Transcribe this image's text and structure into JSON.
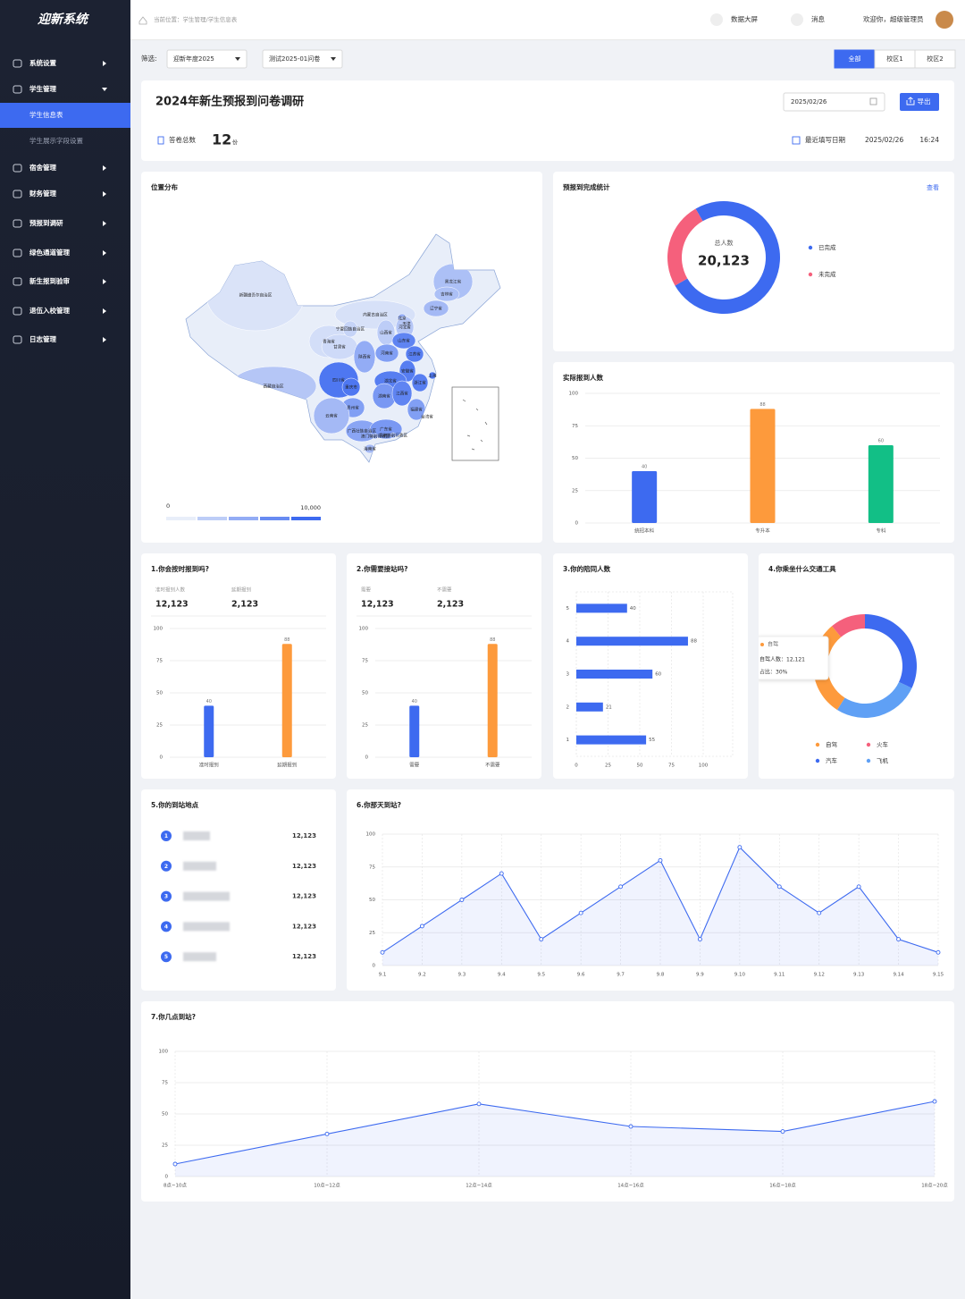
{
  "sidebar": {
    "logo": "迎新系统",
    "menu": [
      {
        "label": "系统设置"
      },
      {
        "label": "学生管理",
        "expanded": true
      },
      {
        "label": "学生信息表",
        "sub": true,
        "active": true
      },
      {
        "label": "学生展示字段设置",
        "sub": true
      },
      {
        "label": "宿舍管理"
      },
      {
        "label": "财务管理"
      },
      {
        "label": "预报到调研"
      },
      {
        "label": "绿色通道管理"
      },
      {
        "label": "新生报到验审"
      },
      {
        "label": "退伍入校管理"
      },
      {
        "label": "日志管理"
      }
    ]
  },
  "header": {
    "breadcrumb": "当前位置：学生管理/学生信息表",
    "screen": "数据大屏",
    "message": "消息",
    "welcome": "欢迎你，超级管理员"
  },
  "filter": {
    "label": "筛选:",
    "year": "迎新年度2025",
    "survey": "测试2025-01问卷",
    "tabs": [
      "全部",
      "校区1",
      "校区2"
    ],
    "active_tab": 0
  },
  "summary": {
    "title": "2024年新生预报到问卷调研",
    "date": "2025/02/26",
    "export": "导出",
    "total_label": "答卷总数",
    "total": 12,
    "unit": "份",
    "last_label": "最近填写日期",
    "last_date": "2025/02/26",
    "last_time": "16:24"
  },
  "chart_data": [
    {
      "type": "map",
      "title": "位置分布",
      "regions": [
        "新疆维吾尔自治区",
        "西藏自治区",
        "青海省",
        "甘肃省",
        "内蒙古自治区",
        "黑龙江省",
        "吉林省",
        "辽宁省",
        "北京",
        "天津",
        "河北省",
        "山西省",
        "宁夏回族自治区",
        "陕西省",
        "山东省",
        "河南省",
        "江苏省",
        "安徽省",
        "上海",
        "湖北省",
        "四川省",
        "重庆市",
        "浙江省",
        "湖南省",
        "江西省",
        "贵州省",
        "云南省",
        "福建省",
        "台湾省",
        "广西壮族自治区",
        "广东省",
        "香港特别行政区",
        "澳门特别行政区",
        "海南省"
      ],
      "values": [
        800,
        3000,
        1200,
        1500,
        1000,
        3500,
        3500,
        4000,
        5000,
        5000,
        3000,
        2500,
        2000,
        5000,
        8000,
        6000,
        8500,
        8500,
        9000,
        8500,
        9000,
        9000,
        8500,
        6500,
        8000,
        6000,
        4000,
        6000,
        5000,
        5500,
        6500,
        5000,
        5000,
        4000
      ],
      "visual_map": [
        0,
        {
          "value": 10000,
          "label": "10,000"
        }
      ],
      "colors": [
        "#e8eef9",
        "#3d6af0"
      ]
    },
    {
      "type": "pie",
      "title": "预报到完成统计",
      "link": "查看",
      "center_label": "总人数",
      "center_value": {
        "value": 20123,
        "label": "20,123"
      },
      "categories": [
        "已完成",
        "未完成"
      ],
      "values": [
        75,
        25
      ],
      "colors": [
        "#3d6af0",
        "#f5607c"
      ]
    },
    {
      "type": "bar",
      "title": "实际报到人数",
      "categories": [
        "统招本科",
        "专升本",
        "专科"
      ],
      "values": [
        40,
        88,
        60
      ],
      "colors": [
        "#3d6af0",
        "#fd9a3c",
        "#12bf86"
      ],
      "ylim": [
        0,
        100
      ],
      "yticks": [
        0,
        25,
        50,
        75,
        100
      ],
      "grid": true
    },
    {
      "type": "bar",
      "title": "1.你会按时报到吗?",
      "stats": [
        {
          "label": "准时报到人数",
          "value": {
            "value": 12123,
            "label": "12,123"
          }
        },
        {
          "label": "延期报到",
          "value": {
            "value": 2123,
            "label": "2,123"
          }
        }
      ],
      "categories": [
        "准时报到",
        "延期报到"
      ],
      "values": [
        40,
        88
      ],
      "colors": [
        "#3d6af0",
        "#fd9a3c"
      ],
      "ylim": [
        0,
        100
      ],
      "yticks": [
        0,
        25,
        50,
        75,
        100
      ],
      "grid": true
    },
    {
      "type": "bar",
      "title": "2.你需要接站吗?",
      "stats": [
        {
          "label": "需要",
          "value": {
            "value": 12123,
            "label": "12,123"
          }
        },
        {
          "label": "不需要",
          "value": {
            "value": 2123,
            "label": "2,123"
          }
        }
      ],
      "categories": [
        "需要",
        "不需要"
      ],
      "values": [
        40,
        88
      ],
      "colors": [
        "#3d6af0",
        "#fd9a3c"
      ],
      "ylim": [
        0,
        100
      ],
      "yticks": [
        0,
        25,
        50,
        75,
        100
      ],
      "grid": true
    },
    {
      "type": "hbar",
      "title": "3.你的陪同人数",
      "categories": [
        "5",
        "4",
        "3",
        "2",
        "1"
      ],
      "values": [
        40,
        88,
        60,
        21,
        55
      ],
      "color": "#3d6af0",
      "xlim": [
        0,
        100
      ],
      "xticks": [
        0,
        25,
        50,
        75,
        100
      ],
      "grid": true
    },
    {
      "type": "pie",
      "title": "4.你乘坐什么交通工具",
      "categories": [
        "自驾",
        "火车",
        "汽车",
        "飞机"
      ],
      "values": [
        30,
        11,
        32,
        27
      ],
      "colors": [
        "#fd9a3c",
        "#f5607c",
        "#3d6af0",
        "#5fa0f5"
      ],
      "tooltip": {
        "title": "自驾",
        "lines": [
          "自驾人数：12,121",
          "占比：30%"
        ]
      }
    },
    {
      "type": "rank",
      "title": "5.你的到站地点",
      "ranks": [
        1,
        2,
        3,
        4,
        5
      ],
      "values": [
        {
          "value": 12123,
          "label": "12,123"
        },
        {
          "value": 12123,
          "label": "12,123"
        },
        {
          "value": 12123,
          "label": "12,123"
        },
        {
          "value": 12123,
          "label": "12,123"
        },
        {
          "value": 12123,
          "label": "12,123"
        }
      ],
      "color": "#3d6af0"
    },
    {
      "type": "line",
      "title": "6.你那天到站?",
      "categories": [
        "9.1",
        "9.2",
        "9.3",
        "9.4",
        "9.5",
        "9.6",
        "9.7",
        "9.8",
        "9.9",
        "9.10",
        "9.11",
        "9.12",
        "9.13",
        "9.14",
        "9.15"
      ],
      "values": [
        10,
        30,
        50,
        70,
        20,
        40,
        60,
        80,
        20,
        90,
        60,
        40,
        60,
        20,
        10
      ],
      "color": "#3d6af0",
      "ylim": [
        0,
        100
      ],
      "yticks": [
        0,
        25,
        50,
        75,
        100
      ],
      "grid": true
    },
    {
      "type": "line",
      "title": "7.你几点到站?",
      "categories": [
        "8点~10点",
        "10点~12点",
        "12点~14点",
        "14点~16点",
        "16点~18点",
        "18点~20点"
      ],
      "values": [
        10,
        34,
        58,
        40,
        36,
        60
      ],
      "color": "#3d6af0",
      "ylim": [
        0,
        100
      ],
      "yticks": [
        0,
        25,
        50,
        75,
        100
      ],
      "grid": true
    }
  ]
}
